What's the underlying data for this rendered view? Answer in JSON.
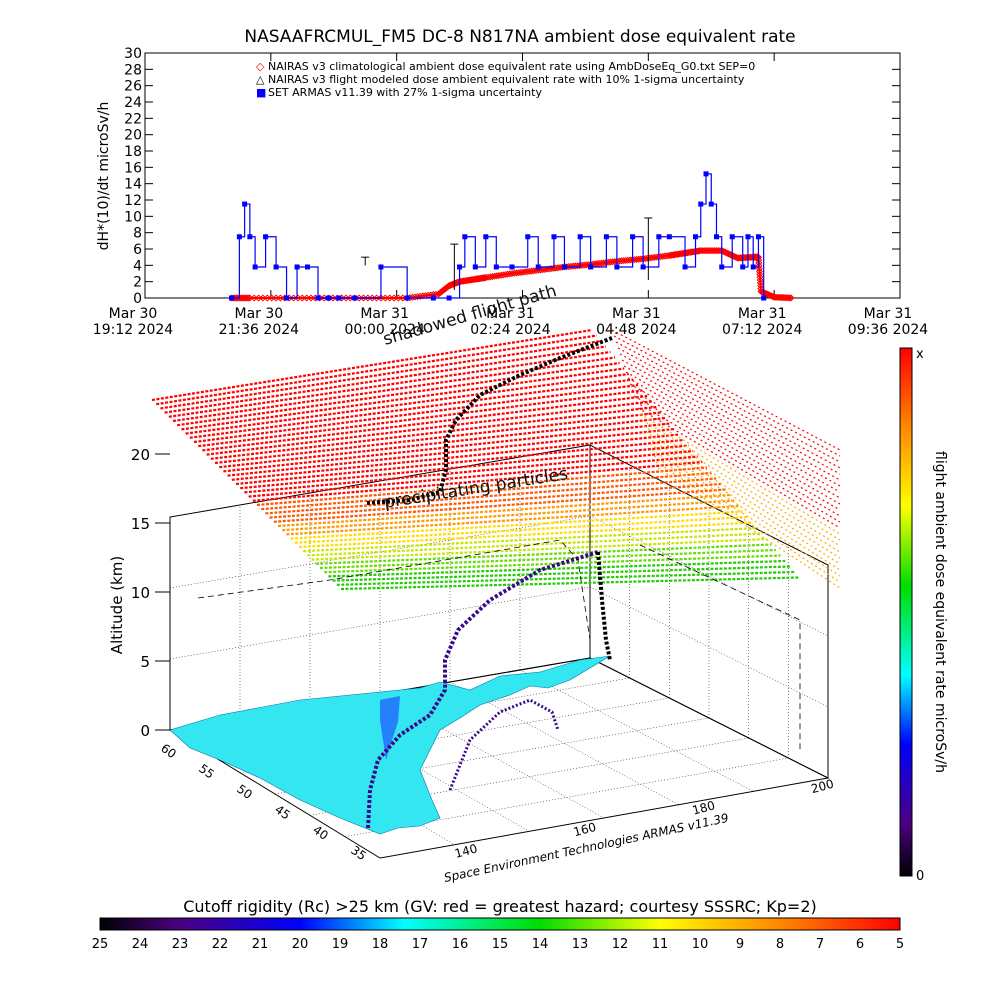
{
  "chart_data": [
    {
      "type": "line",
      "title": "NASAAFRCMUL_FM5 DC-8   N817NA ambient dose equivalent rate",
      "ylabel": "dH*(10)/dt microSv/h",
      "ylim": [
        0,
        30
      ],
      "yticks": [
        "0",
        "2",
        "4",
        "6",
        "8",
        "10",
        "12",
        "14",
        "16",
        "18",
        "20",
        "22",
        "24",
        "26",
        "28",
        "30"
      ],
      "xlim_hours": [
        0,
        14.4
      ],
      "xticks": [
        {
          "line1": "Mar 30",
          "line2": "19:12 2024"
        },
        {
          "line1": "Mar 30",
          "line2": "21:36 2024"
        },
        {
          "line1": "Mar 31",
          "line2": "00:00 2024"
        },
        {
          "line1": "Mar 31",
          "line2": "02:24 2024"
        },
        {
          "line1": "Mar 31",
          "line2": "04:48 2024"
        },
        {
          "line1": "Mar 31",
          "line2": "07:12 2024"
        },
        {
          "line1": "Mar 31",
          "line2": "09:36 2024"
        }
      ],
      "legend": {
        "placement": "top",
        "entries": [
          {
            "symbol": "◇",
            "color": "#ff0000",
            "text": "NAIRAS v3 climatological ambient dose equivalent rate using AmbDoseEq_G0.txt SEP=0"
          },
          {
            "symbol": "△",
            "color": "#000000",
            "text": "NAIRAS v3 flight modeled dose ambient equivalent rate with 10% 1-sigma uncertainty"
          },
          {
            "symbol": "■",
            "color": "#0000ff",
            "text": "SET ARMAS v11.39 with 27% 1-sigma uncertainty"
          }
        ]
      },
      "series": [
        {
          "name": "NAIRAS v3 climatological ambient dose equivalent rate using AmbDoseEq_G0.txt SEP=0",
          "color": "#ff0000",
          "x": [
            1.65,
            2.0,
            3.0,
            4.0,
            5.0,
            5.6,
            5.8,
            6.0,
            6.3,
            6.5,
            7.0,
            7.5,
            8.0,
            8.5,
            9.0,
            9.5,
            10.0,
            10.3,
            10.6,
            11.0,
            11.3,
            11.6,
            11.7,
            11.75,
            12.0,
            12.35
          ],
          "y": [
            0,
            0,
            0,
            0,
            0,
            0.5,
            1.5,
            2.0,
            2.3,
            2.5,
            3.0,
            3.4,
            3.8,
            4.1,
            4.5,
            4.8,
            5.2,
            5.5,
            5.8,
            5.8,
            4.9,
            5.0,
            5.0,
            0.8,
            0.1,
            0
          ]
        },
        {
          "name": "SET ARMAS v11.39 with 27% 1-sigma uncertainty",
          "color": "#0000ff",
          "x": [
            1.65,
            1.8,
            1.9,
            2.0,
            2.1,
            2.3,
            2.5,
            2.7,
            2.9,
            3.1,
            3.3,
            3.5,
            3.7,
            4.0,
            4.5,
            5.0,
            5.5,
            5.8,
            6.0,
            6.1,
            6.3,
            6.5,
            6.7,
            7.0,
            7.3,
            7.5,
            7.8,
            8.0,
            8.3,
            8.5,
            8.8,
            9.0,
            9.3,
            9.5,
            9.8,
            10.0,
            10.3,
            10.5,
            10.6,
            10.7,
            10.8,
            10.9,
            11.0,
            11.2,
            11.4,
            11.5,
            11.6,
            11.7,
            11.8
          ],
          "y": [
            0,
            7.5,
            11.5,
            7.5,
            3.8,
            7.5,
            3.8,
            0,
            3.8,
            3.8,
            0,
            0,
            0,
            0,
            3.8,
            0,
            0,
            0,
            3.8,
            7.5,
            3.8,
            7.5,
            3.8,
            3.8,
            7.5,
            3.8,
            7.5,
            3.8,
            7.5,
            3.8,
            7.5,
            3.8,
            7.5,
            3.8,
            7.5,
            7.5,
            3.8,
            7.5,
            11.5,
            15.2,
            11.5,
            7.5,
            3.8,
            7.5,
            3.8,
            7.5,
            3.8,
            7.5,
            0
          ]
        }
      ]
    },
    {
      "type": "scatter",
      "title": "",
      "zlabel": "Altitude (km)",
      "zticks": [
        "0",
        "5",
        "10",
        "15",
        "20"
      ],
      "lat_ticks": [
        "60",
        "55",
        "50",
        "45",
        "40",
        "35"
      ],
      "lon_ticks": [
        "140",
        "160",
        "180",
        "200"
      ],
      "annotations": {
        "shadowed_flight_path": "shadowed flight path",
        "precipitating_particles": "precipitating particles",
        "credit": "Space Environment Technologies ARMAS v11.39"
      }
    }
  ],
  "colorbar_vertical": {
    "label": "flight ambient dose equivalent rate microSv/h",
    "top_label": "x",
    "bottom_label": "0"
  },
  "colorbar_horizontal": {
    "label": "Cutoff rigidity (Rc) >25 km (GV: red = greatest hazard; courtesy SSSRC; Kp=2)",
    "ticks": [
      "25",
      "24",
      "23",
      "22",
      "21",
      "20",
      "19",
      "18",
      "17",
      "16",
      "15",
      "14",
      "13",
      "12",
      "11",
      "10",
      "9",
      "8",
      "7",
      "6",
      "5"
    ]
  }
}
